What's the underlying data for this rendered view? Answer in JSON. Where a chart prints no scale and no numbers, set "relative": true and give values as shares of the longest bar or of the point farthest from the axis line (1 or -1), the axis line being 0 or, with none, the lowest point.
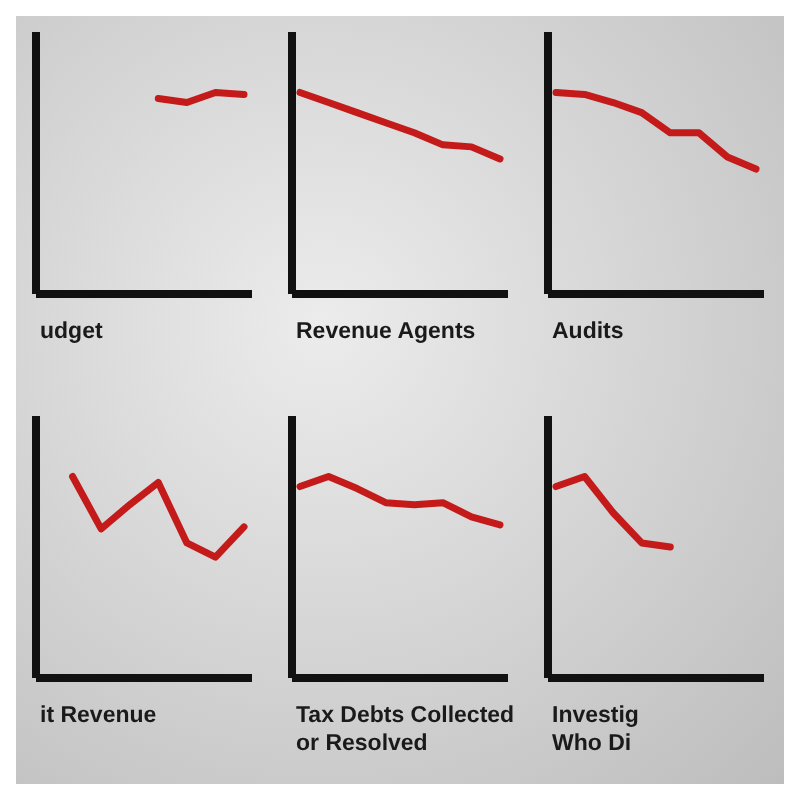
{
  "chart_data": [
    {
      "type": "line",
      "relative": true,
      "xlabel": "udget",
      "categories": [
        null,
        null,
        null,
        null,
        null,
        null,
        null,
        null
      ],
      "color": "#c41a1a",
      "values": [
        null,
        null,
        null,
        null,
        0.97,
        0.95,
        1,
        0.99
      ]
    },
    {
      "type": "line",
      "relative": true,
      "xlabel": "Revenue Agents",
      "categories": [
        null,
        null,
        null,
        null,
        null,
        null,
        null,
        null
      ],
      "color": "#c41a1a",
      "values": [
        1,
        0.95,
        0.9,
        0.85,
        0.8,
        0.74,
        0.73,
        0.67
      ]
    },
    {
      "type": "line",
      "relative": true,
      "xlabel": "Audits",
      "categories": [
        null,
        null,
        null,
        null,
        null,
        null,
        null,
        null
      ],
      "color": "#c41a1a",
      "values": [
        1,
        0.99,
        0.95,
        0.9,
        0.8,
        0.8,
        0.68,
        0.62
      ]
    },
    {
      "type": "line",
      "relative": true,
      "xlabel": "it Revenue",
      "categories": [
        null,
        null,
        null,
        null,
        null,
        null,
        null,
        null
      ],
      "color": "#c41a1a",
      "values": [
        null,
        1,
        0.74,
        0.86,
        0.97,
        0.67,
        0.6,
        0.75
      ]
    },
    {
      "type": "line",
      "relative": true,
      "xlabel": "Tax Debts Collected\nor Resolved",
      "categories": [
        null,
        null,
        null,
        null,
        null,
        null,
        null,
        null
      ],
      "color": "#c41a1a",
      "values": [
        0.95,
        1,
        0.94,
        0.87,
        0.86,
        0.87,
        0.8,
        0.76
      ]
    },
    {
      "type": "line",
      "relative": true,
      "xlabel": "Investig\nWho Di",
      "categories": [
        null,
        null,
        null,
        null,
        null,
        null,
        null,
        null
      ],
      "color": "#c41a1a",
      "values": [
        0.95,
        1,
        0.82,
        0.67,
        0.65,
        null,
        null,
        null
      ]
    }
  ]
}
